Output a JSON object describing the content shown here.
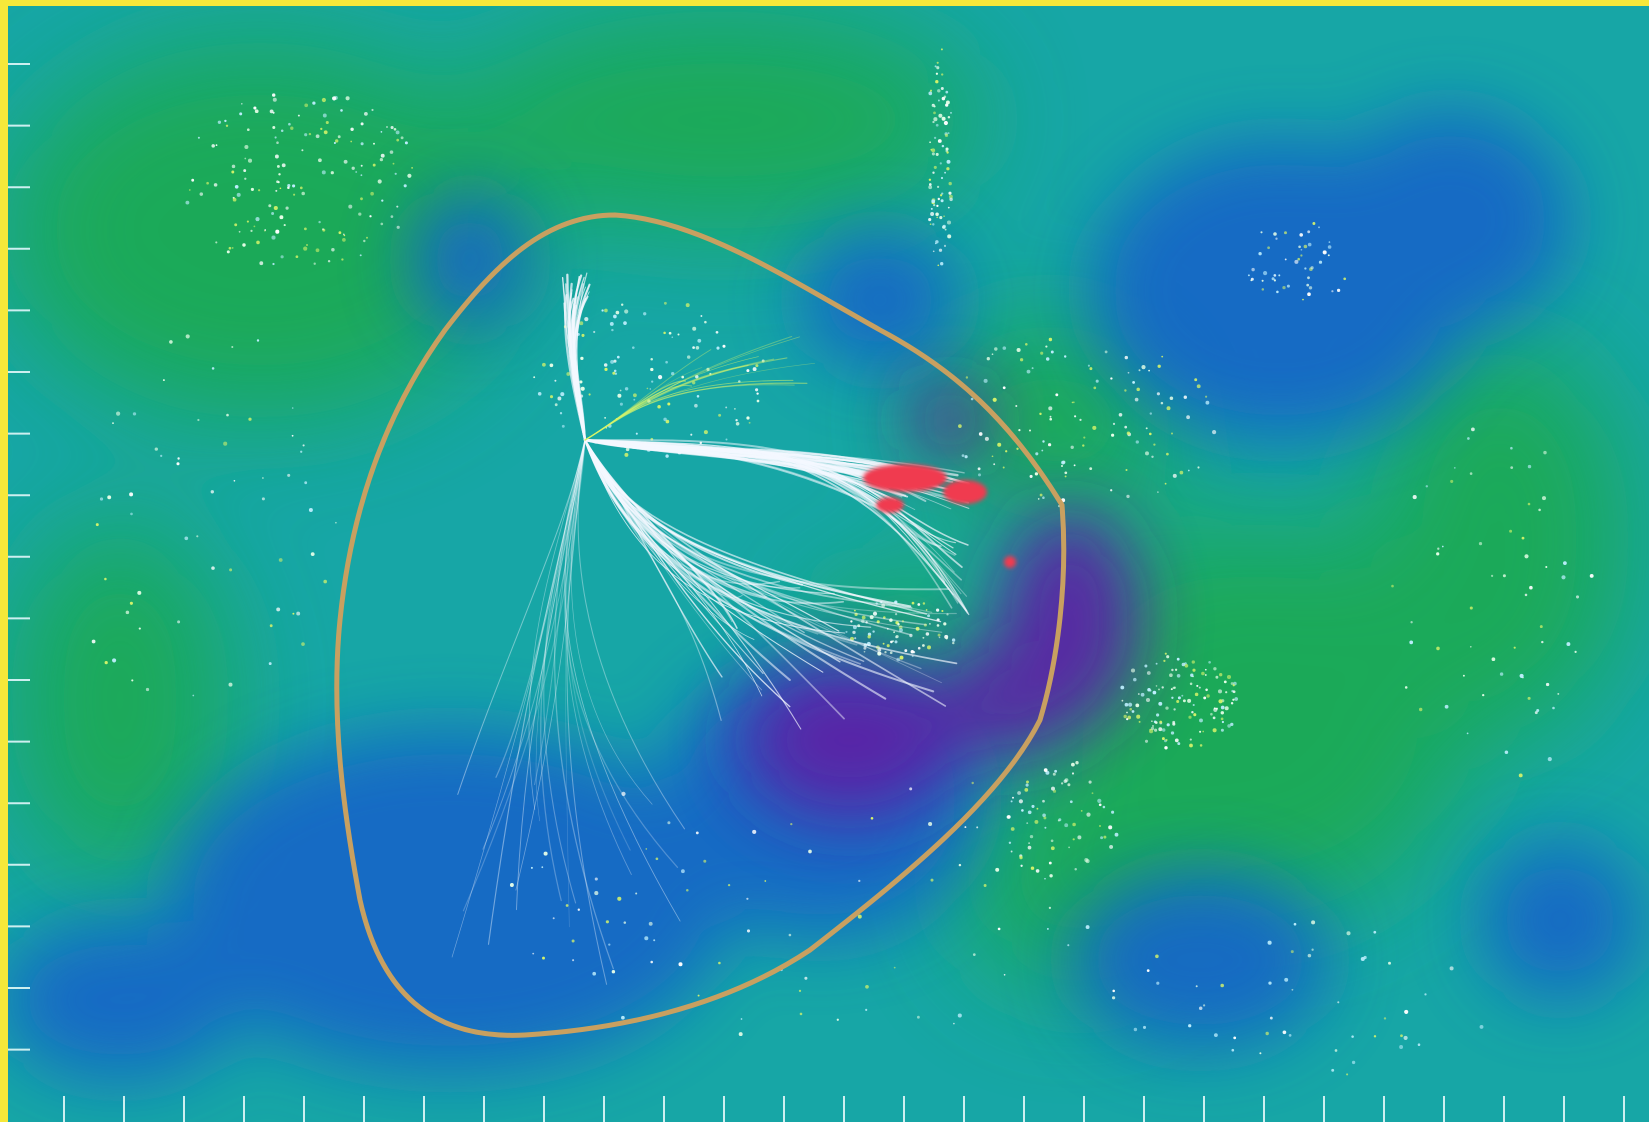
{
  "figure": {
    "colors": {
      "frame": "#f6e83a",
      "background": "#17a6a6",
      "green_region": "#1faa4c",
      "blue_region": "#1565c8",
      "violet_region": "#5b23a6",
      "boundary": "#c8a060",
      "flow_lines": "#f4f8ff",
      "hot_spot": "#f03a50",
      "ticks": "#cdeff0"
    },
    "elements": {
      "boundary": "closed-contour",
      "flow": "converging-streamlines",
      "particles": "scattered-galaxy-dots",
      "axes": "tick-marks-left-and-bottom"
    }
  }
}
